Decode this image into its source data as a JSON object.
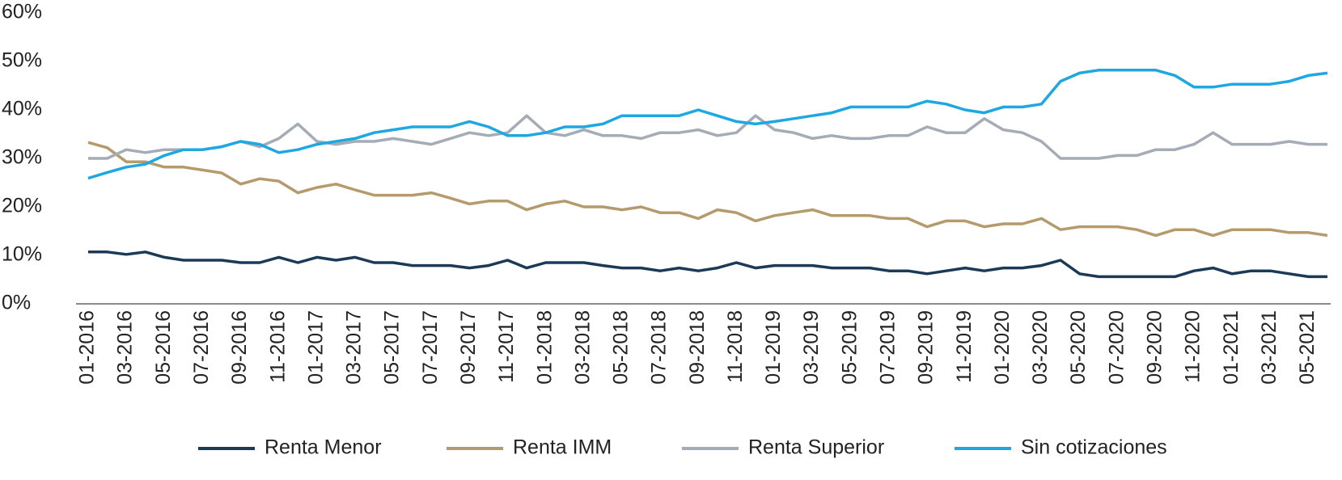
{
  "chart_data": {
    "type": "line",
    "categories": [
      "01-2016",
      null,
      "03-2016",
      null,
      "05-2016",
      null,
      "07-2016",
      null,
      "09-2016",
      null,
      "11-2016",
      null,
      "01-2017",
      null,
      "03-2017",
      null,
      "05-2017",
      null,
      "07-2017",
      null,
      "09-2017",
      null,
      "11-2017",
      null,
      "01-2018",
      null,
      "03-2018",
      null,
      "05-2018",
      null,
      "07-2018",
      null,
      "09-2018",
      null,
      "11-2018",
      null,
      "01-2019",
      null,
      "03-2019",
      null,
      "05-2019",
      null,
      "07-2019",
      null,
      "09-2019",
      null,
      "11-2019",
      null,
      "01-2020",
      null,
      "03-2020",
      null,
      "05-2020",
      null,
      "07-2020",
      null,
      "09-2020",
      null,
      "11-2020",
      null,
      "01-2021",
      null,
      "03-2021",
      null,
      "05-2021",
      null
    ],
    "series": [
      {
        "name": "Renta Menor",
        "color": "#1b3a57",
        "values": [
          10.7,
          10.7,
          10.2,
          10.7,
          9.6,
          9,
          9,
          9,
          8.5,
          8.5,
          9.6,
          8.5,
          9.6,
          9,
          9.6,
          8.5,
          8.5,
          7.9,
          7.9,
          7.9,
          7.4,
          7.9,
          9,
          7.4,
          8.5,
          8.5,
          8.5,
          7.9,
          7.4,
          7.4,
          6.8,
          7.4,
          6.8,
          7.4,
          8.5,
          7.4,
          7.9,
          7.9,
          7.9,
          7.4,
          7.4,
          7.4,
          6.8,
          6.8,
          6.2,
          6.8,
          7.4,
          6.8,
          7.4,
          7.4,
          7.9,
          9,
          6.2,
          5.6,
          5.6,
          5.6,
          5.6,
          5.6,
          6.8,
          7.4,
          6.2,
          6.8,
          6.8,
          6.2,
          5.6,
          5.6
        ]
      },
      {
        "name": "Renta IMM",
        "color": "#b59a6b",
        "values": [
          33.3,
          32.2,
          29.3,
          29.3,
          28.2,
          28.2,
          27.6,
          27,
          24.7,
          25.8,
          25.3,
          22.9,
          24,
          24.7,
          23.5,
          22.4,
          22.4,
          22.4,
          22.9,
          21.8,
          20.6,
          21.2,
          21.2,
          19.4,
          20.6,
          21.2,
          20,
          20,
          19.4,
          20,
          18.8,
          18.8,
          17.6,
          19.4,
          18.8,
          17.1,
          18.2,
          18.8,
          19.4,
          18.2,
          18.2,
          18.2,
          17.6,
          17.6,
          15.9,
          17.1,
          17.1,
          15.9,
          16.5,
          16.5,
          17.6,
          15.3,
          15.9,
          15.9,
          15.9,
          15.3,
          14.1,
          15.3,
          15.3,
          14.1,
          15.3,
          15.3,
          15.3,
          14.7,
          14.7,
          14.1
        ]
      },
      {
        "name": "Renta Superior",
        "color": "#a5acb6",
        "values": [
          30,
          30,
          31.8,
          31.2,
          31.8,
          31.8,
          31.8,
          32.4,
          33.5,
          32.4,
          34.1,
          37.1,
          33.5,
          32.9,
          33.5,
          33.5,
          34.1,
          33.5,
          32.9,
          34.1,
          35.3,
          34.7,
          35.3,
          38.8,
          35.3,
          34.7,
          35.9,
          34.7,
          34.7,
          34.1,
          35.3,
          35.3,
          35.9,
          34.7,
          35.3,
          38.8,
          35.9,
          35.3,
          34.1,
          34.7,
          34.1,
          34.1,
          34.7,
          34.7,
          36.5,
          35.3,
          35.3,
          38.2,
          35.9,
          35.3,
          33.5,
          30,
          30,
          30,
          30.6,
          30.6,
          31.8,
          31.8,
          32.9,
          35.3,
          32.9,
          32.9,
          32.9,
          33.5,
          32.9,
          32.9
        ]
      },
      {
        "name": "Sin cotizaciones",
        "color": "#1ea7e1",
        "values": [
          25.9,
          27.1,
          28.2,
          28.8,
          30.6,
          31.8,
          31.8,
          32.4,
          33.5,
          32.9,
          31.2,
          31.8,
          32.9,
          33.5,
          34.1,
          35.3,
          35.9,
          36.5,
          36.5,
          36.5,
          37.6,
          36.5,
          34.7,
          34.7,
          35.3,
          36.5,
          36.5,
          37.1,
          38.8,
          38.8,
          38.8,
          38.8,
          40,
          38.8,
          37.6,
          37.1,
          37.6,
          38.2,
          38.8,
          39.4,
          40.6,
          40.6,
          40.6,
          40.6,
          41.8,
          41.2,
          40,
          39.4,
          40.6,
          40.6,
          41.2,
          45.9,
          47.6,
          48.2,
          48.2,
          48.2,
          48.2,
          47.1,
          44.7,
          44.7,
          45.3,
          45.3,
          45.3,
          45.9,
          47.1,
          47.6
        ]
      }
    ],
    "ylim": [
      0,
      60
    ],
    "yticks": [
      {
        "value": 0,
        "label": "0%"
      },
      {
        "value": 10,
        "label": "10%"
      },
      {
        "value": 20,
        "label": "20%"
      },
      {
        "value": 30,
        "label": "30%"
      },
      {
        "value": 40,
        "label": "40%"
      },
      {
        "value": 50,
        "label": "50%"
      },
      {
        "value": 60,
        "label": "60%"
      }
    ],
    "grid": false,
    "legend": "bottom"
  }
}
